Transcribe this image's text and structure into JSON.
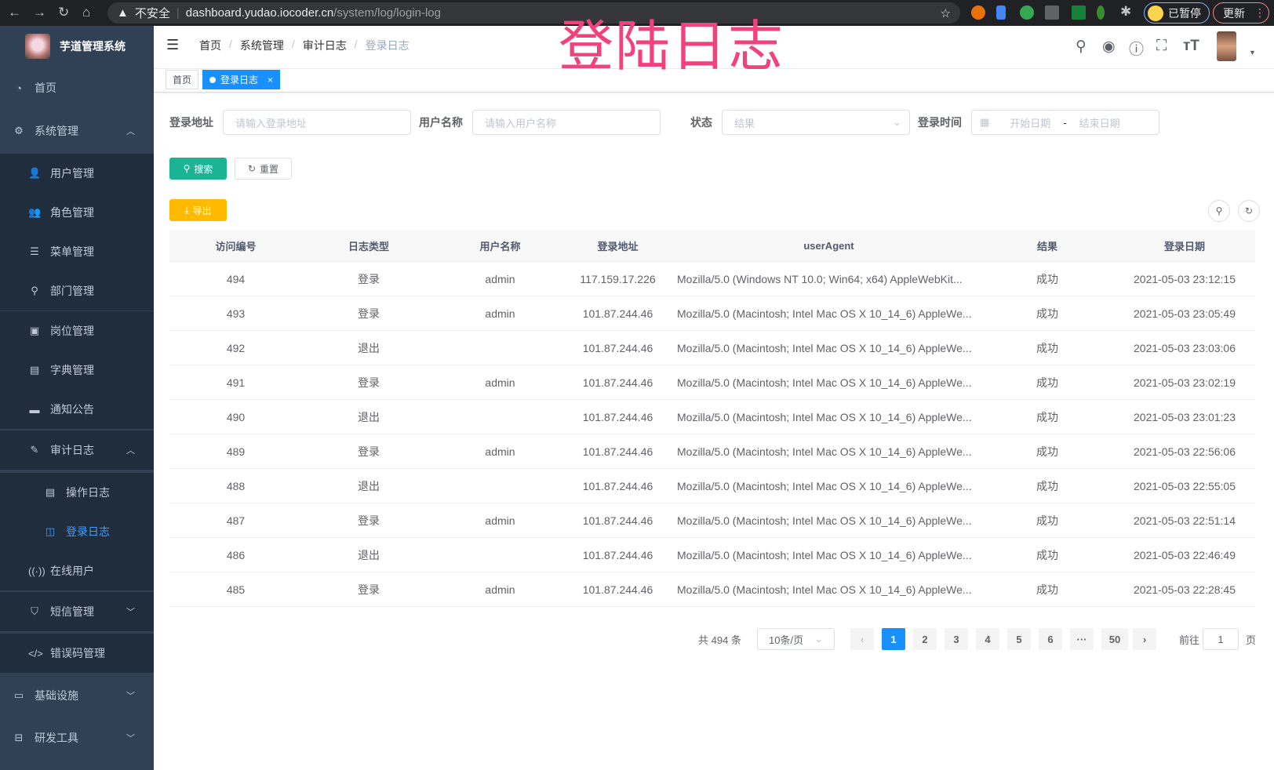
{
  "browser": {
    "insecure": "不安全",
    "url_host": "dashboard.yudao.iocoder.cn",
    "url_path": "/system/log/login-log",
    "profile": "已暂停",
    "update": "更新"
  },
  "logo": {
    "title": "芋道管理系统"
  },
  "overlay_title": "登陆日志",
  "breadcrumb": [
    "首页",
    "系统管理",
    "审计日志",
    "登录日志"
  ],
  "tags": {
    "home": "首页",
    "active": "登录日志",
    "close": "×"
  },
  "sidebar": {
    "items": [
      {
        "label": "首页",
        "icon": "dashboard-icon",
        "glyph": "◔",
        "level": 0
      },
      {
        "label": "系统管理",
        "icon": "gear-icon",
        "glyph": "⚙",
        "level": 0,
        "caret": "︿"
      },
      {
        "label": "用户管理",
        "icon": "user-icon",
        "glyph": "👤",
        "level": 1
      },
      {
        "label": "角色管理",
        "icon": "peoples-icon",
        "glyph": "👥",
        "level": 1
      },
      {
        "label": "菜单管理",
        "icon": "tree-table-icon",
        "glyph": "☰",
        "level": 1
      },
      {
        "label": "部门管理",
        "icon": "tree-icon",
        "glyph": "⚲",
        "level": 1
      },
      {
        "label": "岗位管理",
        "icon": "post-icon",
        "glyph": "▣",
        "level": 1
      },
      {
        "label": "字典管理",
        "icon": "dict-icon",
        "glyph": "▤",
        "level": 1
      },
      {
        "label": "通知公告",
        "icon": "message-icon",
        "glyph": "▬",
        "level": 1
      },
      {
        "label": "审计日志",
        "icon": "log-icon",
        "glyph": "✎",
        "level": 1,
        "caret": "︿"
      },
      {
        "label": "操作日志",
        "icon": "form-icon",
        "glyph": "▤",
        "level": 2
      },
      {
        "label": "登录日志",
        "icon": "logininfor-icon",
        "glyph": "◫",
        "level": 2,
        "active": true
      },
      {
        "label": "在线用户",
        "icon": "online-icon",
        "glyph": "((·))",
        "level": 1
      },
      {
        "label": "短信管理",
        "icon": "validcode-icon",
        "glyph": "⛉",
        "level": 1,
        "caret": "﹀"
      },
      {
        "label": "错误码管理",
        "icon": "code-icon",
        "glyph": "</>",
        "level": 1
      },
      {
        "label": "基础设施",
        "icon": "monitor-icon",
        "glyph": "▭",
        "level": 0,
        "caret": "﹀"
      },
      {
        "label": "研发工具",
        "icon": "tool-icon",
        "glyph": "⊟",
        "level": 0,
        "caret": "﹀"
      }
    ]
  },
  "search": {
    "ip_label": "登录地址",
    "ip_placeholder": "请输入登录地址",
    "user_label": "用户名称",
    "user_placeholder": "请输入用户名称",
    "status_label": "状态",
    "status_placeholder": "结果",
    "time_label": "登录时间",
    "start_placeholder": "开始日期",
    "range_sep": "-",
    "end_placeholder": "结束日期",
    "search_btn": "搜索",
    "reset_btn": "重置",
    "export_btn": "导出"
  },
  "colors": {
    "primary": "#1890ff",
    "search_btn": "#1ab394",
    "export_btn": "#ffba00",
    "sidebar": "#304156",
    "overlay": "#f2427d"
  },
  "table": {
    "headers": [
      "访问编号",
      "日志类型",
      "用户名称",
      "登录地址",
      "userAgent",
      "结果",
      "登录日期"
    ],
    "rows": [
      [
        "494",
        "登录",
        "admin",
        "117.159.17.226",
        "Mozilla/5.0 (Windows NT 10.0; Win64; x64) AppleWebKit...",
        "成功",
        "2021-05-03 23:12:15"
      ],
      [
        "493",
        "登录",
        "admin",
        "101.87.244.46",
        "Mozilla/5.0 (Macintosh; Intel Mac OS X 10_14_6) AppleWe...",
        "成功",
        "2021-05-03 23:05:49"
      ],
      [
        "492",
        "退出",
        "",
        "101.87.244.46",
        "Mozilla/5.0 (Macintosh; Intel Mac OS X 10_14_6) AppleWe...",
        "成功",
        "2021-05-03 23:03:06"
      ],
      [
        "491",
        "登录",
        "admin",
        "101.87.244.46",
        "Mozilla/5.0 (Macintosh; Intel Mac OS X 10_14_6) AppleWe...",
        "成功",
        "2021-05-03 23:02:19"
      ],
      [
        "490",
        "退出",
        "",
        "101.87.244.46",
        "Mozilla/5.0 (Macintosh; Intel Mac OS X 10_14_6) AppleWe...",
        "成功",
        "2021-05-03 23:01:23"
      ],
      [
        "489",
        "登录",
        "admin",
        "101.87.244.46",
        "Mozilla/5.0 (Macintosh; Intel Mac OS X 10_14_6) AppleWe...",
        "成功",
        "2021-05-03 22:56:06"
      ],
      [
        "488",
        "退出",
        "",
        "101.87.244.46",
        "Mozilla/5.0 (Macintosh; Intel Mac OS X 10_14_6) AppleWe...",
        "成功",
        "2021-05-03 22:55:05"
      ],
      [
        "487",
        "登录",
        "admin",
        "101.87.244.46",
        "Mozilla/5.0 (Macintosh; Intel Mac OS X 10_14_6) AppleWe...",
        "成功",
        "2021-05-03 22:51:14"
      ],
      [
        "486",
        "退出",
        "",
        "101.87.244.46",
        "Mozilla/5.0 (Macintosh; Intel Mac OS X 10_14_6) AppleWe...",
        "成功",
        "2021-05-03 22:46:49"
      ],
      [
        "485",
        "登录",
        "admin",
        "101.87.244.46",
        "Mozilla/5.0 (Macintosh; Intel Mac OS X 10_14_6) AppleWe...",
        "成功",
        "2021-05-03 22:28:45"
      ]
    ]
  },
  "pagination": {
    "total": "共 494 条",
    "page_size": "10条/页",
    "pages": [
      "1",
      "2",
      "3",
      "4",
      "5",
      "6",
      "···",
      "50"
    ],
    "current": "1",
    "prev": "‹",
    "next": "›",
    "goto_label": "前往",
    "goto_value": "1",
    "goto_suffix": "页"
  }
}
